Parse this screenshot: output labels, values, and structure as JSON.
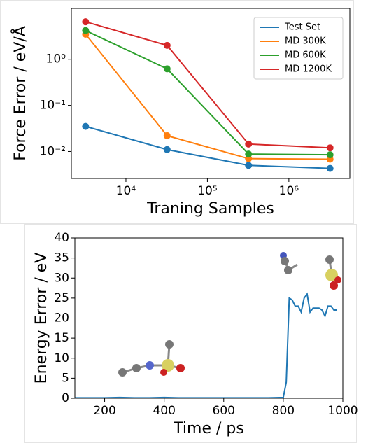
{
  "chart_data": [
    {
      "type": "line",
      "xlabel": "Traning Samples",
      "ylabel": "Force Error / eV/Å",
      "xscale": "log",
      "yscale": "log",
      "markers": true,
      "legend": "upper right",
      "x": [
        3200,
        32000,
        320000,
        3200000
      ],
      "series": [
        {
          "name": "Test Set",
          "color": "#1f77b4",
          "values": [
            0.035,
            0.011,
            0.005,
            0.0043
          ]
        },
        {
          "name": "MD 300K",
          "color": "#ff7f0e",
          "values": [
            3.5,
            0.022,
            0.007,
            0.0068
          ]
        },
        {
          "name": "MD 600K",
          "color": "#2ca02c",
          "values": [
            4.2,
            0.62,
            0.0088,
            0.0085
          ]
        },
        {
          "name": "MD 1200K",
          "color": "#d62728",
          "values": [
            6.5,
            2.0,
            0.0145,
            0.012
          ]
        }
      ],
      "xlim": [
        2140,
        5600000
      ],
      "ylim": [
        0.0026,
        12.7
      ],
      "xticks": [
        {
          "value": 10000,
          "label": "10⁴"
        },
        {
          "value": 100000,
          "label": "10⁵"
        },
        {
          "value": 1000000,
          "label": "10⁶"
        }
      ],
      "yticks": [
        {
          "value": 0.01,
          "label": "10⁻²"
        },
        {
          "value": 0.1,
          "label": "10⁻¹"
        },
        {
          "value": 1,
          "label": "10⁰"
        }
      ]
    },
    {
      "type": "line",
      "xlabel": "Time / ps",
      "ylabel": "Energy Error / eV",
      "markers": false,
      "x": [
        100,
        150,
        200,
        250,
        300,
        350,
        400,
        450,
        500,
        550,
        600,
        650,
        700,
        750,
        800,
        810,
        820,
        830,
        840,
        850,
        860,
        870,
        880,
        890,
        900,
        910,
        920,
        930,
        940,
        950,
        960,
        970,
        980
      ],
      "series": [
        {
          "color": "#1f77b4",
          "values": [
            0.1,
            0.1,
            0.1,
            0.2,
            0.1,
            0.1,
            0.2,
            0.1,
            0.1,
            0.1,
            0.1,
            0.1,
            0.1,
            0.1,
            0.2,
            4,
            25,
            24.5,
            23,
            23,
            21.5,
            25,
            26,
            21.5,
            22.5,
            22.5,
            22.5,
            22,
            20.5,
            23,
            23,
            22,
            22
          ]
        }
      ],
      "xlim": [
        100,
        1000
      ],
      "ylim": [
        0,
        40
      ],
      "xticks": [
        200,
        400,
        600,
        800,
        1000
      ],
      "yticks": [
        0,
        5,
        10,
        15,
        20,
        25,
        30,
        35,
        40
      ]
    }
  ]
}
